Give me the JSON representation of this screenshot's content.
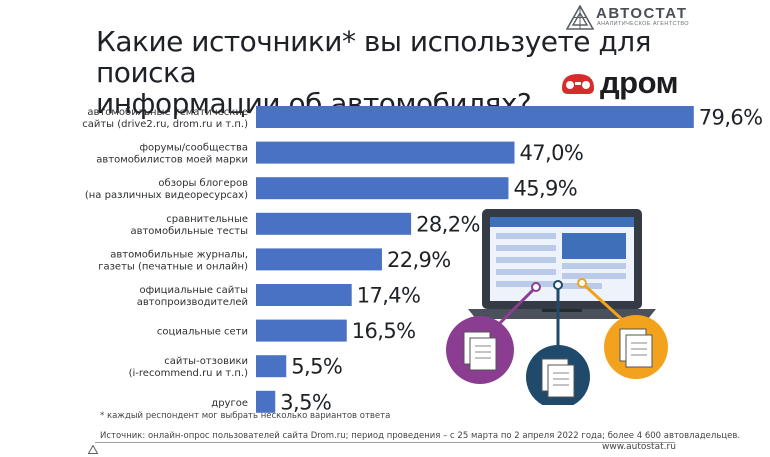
{
  "header": {
    "brand_name": "АВТОСТАТ",
    "brand_tagline": "АНАЛИТИЧЕСКОЕ АГЕНТСТВО",
    "partner_name": "дром"
  },
  "chart_data": {
    "type": "bar",
    "orientation": "horizontal",
    "title_lines": [
      "Какие источники* вы используете для поиска",
      "информации об автомобилях?"
    ],
    "categories": [
      [
        "автомобильные тематические",
        "сайты (drive2.ru, drom.ru и т.п.)"
      ],
      [
        "форумы/сообщества",
        "автомобилистов моей марки"
      ],
      [
        "обзоры блогеров",
        "(на различных видеоресурсах)"
      ],
      [
        "сравнительные",
        "автомобильные тесты"
      ],
      [
        "автомобильные журналы,",
        "газеты (печатные и онлайн)"
      ],
      [
        "официальные сайты",
        "автопроизводителей"
      ],
      [
        "социальные сети"
      ],
      [
        "сайты-отзовики",
        "(i-recommend.ru и т.п.)"
      ],
      [
        "другое"
      ]
    ],
    "values": [
      79.6,
      47.0,
      45.9,
      28.2,
      22.9,
      17.4,
      16.5,
      5.5,
      3.5
    ],
    "value_labels": [
      "79,6%",
      "47,0%",
      "45,9%",
      "28,2%",
      "22,9%",
      "17,4%",
      "16,5%",
      "5,5%",
      "3,5%"
    ],
    "unit": "%",
    "xlim": [
      0,
      100
    ],
    "bar_color": "#4a72c4",
    "grid": false,
    "legend": "none"
  },
  "footnote": "* каждый респондент мог выбрать несколько вариантов ответа",
  "source": "Источник: онлайн-опрос пользователей сайта Drom.ru; период проведения – с 25 марта по 2 апреля 2022 года; более 4 600 автовладельцев.",
  "site": "www.autostat.ru",
  "colors": {
    "accent_red": "#d62c2c",
    "laptop_dark": "#353b45",
    "screen_blue": "#3f6fb8",
    "circle_purple": "#8a3d91",
    "circle_navy": "#1f4a6b",
    "circle_orange": "#f2a21c"
  },
  "illustration_icons": [
    "laptop-icon",
    "document-icon",
    "document-icon",
    "document-icon"
  ]
}
